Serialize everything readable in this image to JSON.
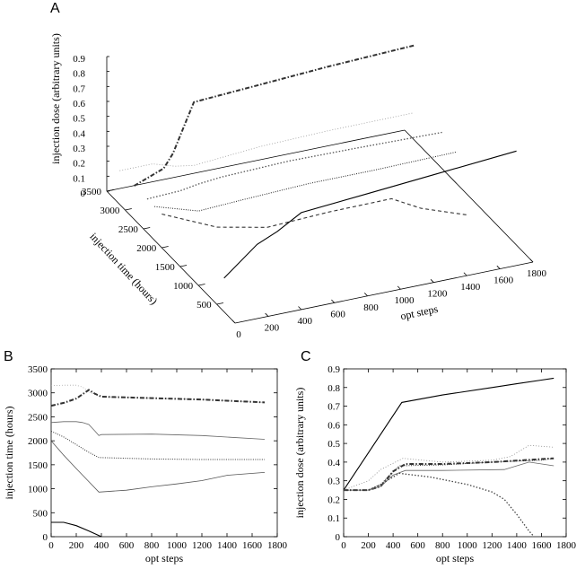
{
  "panels": {
    "a": {
      "letter": "A"
    },
    "b": {
      "letter": "B"
    },
    "c": {
      "letter": "C"
    }
  },
  "chart_data": [
    {
      "panel": "A",
      "type": "line",
      "projection": "3d",
      "xlabel": "opt steps",
      "ylabel": "injection time (hours)",
      "zlabel": "injection dose (arbitrary units)",
      "xticks": [
        0,
        200,
        400,
        600,
        800,
        1000,
        1200,
        1400,
        1600,
        1800
      ],
      "yticks": [
        500,
        1000,
        1500,
        2000,
        2500,
        3000,
        3500
      ],
      "zticks": [
        0,
        0.1,
        0.2,
        0.3,
        0.4,
        0.5,
        0.6,
        0.7,
        0.8,
        0.9
      ],
      "xlim": [
        0,
        1800
      ],
      "ylim": [
        0,
        3500
      ],
      "zlim": [
        0,
        0.9
      ],
      "series": [
        {
          "style": "dotted-thin",
          "color": "#999999",
          "x": [
            0,
            200,
            300,
            400,
            800,
            1200,
            1700
          ],
          "y": [
            3150,
            3150,
            3000,
            2930,
            2900,
            2880,
            2800
          ],
          "z": [
            0.25,
            0.25,
            0.25,
            0.25,
            0.3,
            0.32,
            0.35
          ]
        },
        {
          "style": "dash-dot-heavy",
          "color": "#333333",
          "x": [
            0,
            200,
            300,
            400,
            800,
            1200,
            1700
          ],
          "y": [
            2750,
            2850,
            3050,
            2930,
            2900,
            2870,
            2800
          ],
          "z": [
            0.25,
            0.3,
            0.33,
            0.72,
            0.76,
            0.8,
            0.85
          ]
        },
        {
          "style": "dotted",
          "color": "#555555",
          "x": [
            0,
            200,
            300,
            380,
            800,
            1200,
            1700
          ],
          "y": [
            2400,
            2400,
            2350,
            2100,
            2150,
            2100,
            2030
          ],
          "z": [
            0.25,
            0.26,
            0.3,
            0.4,
            0.4,
            0.41,
            0.42
          ]
        },
        {
          "style": "dotted-fine",
          "color": "#222222",
          "x": [
            0,
            200,
            400,
            800,
            1200,
            1700
          ],
          "y": [
            2200,
            1900,
            1650,
            1620,
            1620,
            1620
          ],
          "z": [
            0.25,
            0.25,
            0.35,
            0.38,
            0.38,
            0.39
          ]
        },
        {
          "style": "dashed",
          "color": "#333333",
          "x": [
            0,
            200,
            400,
            800,
            1200,
            1400,
            1700
          ],
          "y": [
            2000,
            1400,
            930,
            1050,
            1150,
            1250,
            1340
          ],
          "z": [
            0.25,
            0.27,
            0.35,
            0.33,
            0.3,
            0.15,
            0.0
          ]
        },
        {
          "style": "solid",
          "color": "#000000",
          "x": [
            0,
            200,
            300,
            400,
            800,
            1200,
            1700
          ],
          "y": [
            300,
            300,
            200,
            0,
            0,
            0,
            0
          ],
          "z": [
            0.25,
            0.45,
            0.55,
            0.72,
            0.76,
            0.8,
            0.85
          ]
        }
      ]
    },
    {
      "panel": "B",
      "type": "line",
      "xlabel": "opt steps",
      "ylabel": "injection time (hours)",
      "xticks": [
        0,
        200,
        400,
        600,
        800,
        1000,
        1200,
        1400,
        1600,
        1800
      ],
      "yticks": [
        0,
        500,
        1000,
        1500,
        2000,
        2500,
        3000,
        3500
      ],
      "xlim": [
        0,
        1800
      ],
      "ylim": [
        0,
        3500
      ],
      "series": [
        {
          "style": "dotted-thin",
          "color": "#aaaaaa",
          "x": [
            0,
            100,
            200,
            250,
            300,
            350,
            400,
            800,
            1200,
            1700
          ],
          "y": [
            3150,
            3160,
            3160,
            3120,
            3020,
            2960,
            2920,
            2890,
            2860,
            2800
          ]
        },
        {
          "style": "dash-dot-heavy",
          "color": "#333333",
          "x": [
            0,
            100,
            200,
            250,
            300,
            350,
            400,
            800,
            1200,
            1700
          ],
          "y": [
            2730,
            2790,
            2880,
            2970,
            3060,
            2980,
            2920,
            2890,
            2860,
            2800
          ]
        },
        {
          "style": "solid-thin",
          "color": "#666666",
          "x": [
            0,
            100,
            200,
            250,
            300,
            350,
            380,
            400,
            800,
            1200,
            1700
          ],
          "y": [
            2380,
            2400,
            2400,
            2380,
            2340,
            2200,
            2110,
            2130,
            2140,
            2110,
            2030
          ]
        },
        {
          "style": "dotted-fine",
          "color": "#333333",
          "x": [
            0,
            100,
            200,
            300,
            380,
            800,
            1200,
            1700
          ],
          "y": [
            2200,
            2080,
            1920,
            1760,
            1650,
            1620,
            1610,
            1610
          ]
        },
        {
          "style": "solid-thin",
          "color": "#555555",
          "x": [
            0,
            100,
            200,
            300,
            380,
            600,
            800,
            1000,
            1200,
            1400,
            1700
          ],
          "y": [
            2000,
            1700,
            1420,
            1150,
            930,
            970,
            1040,
            1100,
            1170,
            1280,
            1340
          ]
        },
        {
          "style": "solid",
          "color": "#000000",
          "x": [
            0,
            100,
            200,
            300,
            400
          ],
          "y": [
            300,
            300,
            230,
            120,
            0
          ]
        }
      ]
    },
    {
      "panel": "C",
      "type": "line",
      "xlabel": "opt steps",
      "ylabel": "injection dose (arbitrary units)",
      "xticks": [
        0,
        200,
        400,
        600,
        800,
        1000,
        1200,
        1400,
        1600,
        1800
      ],
      "yticks": [
        0,
        0.1,
        0.2,
        0.3,
        0.4,
        0.5,
        0.6,
        0.7,
        0.8,
        0.9
      ],
      "xlim": [
        0,
        1800
      ],
      "ylim": [
        0,
        0.9
      ],
      "series": [
        {
          "style": "solid",
          "color": "#000000",
          "x": [
            0,
            470,
            800,
            1200,
            1400,
            1600,
            1700
          ],
          "y": [
            0.25,
            0.72,
            0.76,
            0.8,
            0.82,
            0.84,
            0.85
          ]
        },
        {
          "style": "dotted-thin",
          "color": "#888888",
          "x": [
            0,
            200,
            300,
            480,
            800,
            1200,
            1350,
            1500,
            1700
          ],
          "y": [
            0.25,
            0.3,
            0.36,
            0.42,
            0.4,
            0.41,
            0.43,
            0.49,
            0.48
          ]
        },
        {
          "style": "dash-dot-heavy",
          "color": "#333333",
          "x": [
            0,
            200,
            300,
            400,
            500,
            800,
            1200,
            1700
          ],
          "y": [
            0.25,
            0.25,
            0.27,
            0.35,
            0.39,
            0.39,
            0.4,
            0.42
          ]
        },
        {
          "style": "solid-thin",
          "color": "#666666",
          "x": [
            0,
            200,
            300,
            400,
            500,
            800,
            1300,
            1500,
            1700
          ],
          "y": [
            0.25,
            0.25,
            0.27,
            0.33,
            0.355,
            0.355,
            0.36,
            0.4,
            0.38
          ]
        },
        {
          "style": "dotted-fine",
          "color": "#333333",
          "x": [
            0,
            200,
            300,
            450,
            800,
            1200,
            1600,
            1700
          ],
          "y": [
            0.25,
            0.25,
            0.28,
            0.38,
            0.385,
            0.4,
            0.41,
            0.42
          ]
        },
        {
          "style": "dotted",
          "color": "#444444",
          "x": [
            0,
            200,
            300,
            450,
            700,
            1000,
            1200,
            1300,
            1400,
            1500,
            1540
          ],
          "y": [
            0.25,
            0.25,
            0.28,
            0.34,
            0.32,
            0.28,
            0.24,
            0.2,
            0.12,
            0.03,
            0.0
          ]
        }
      ]
    }
  ]
}
